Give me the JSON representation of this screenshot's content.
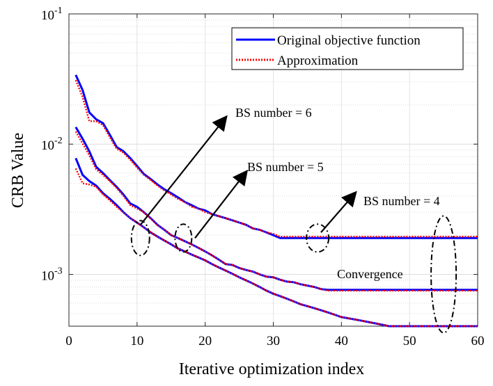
{
  "chart_data": {
    "type": "line",
    "xlabel": "Iterative optimization index",
    "ylabel": "CRB Value",
    "xlim": [
      0,
      60
    ],
    "ylim": [
      0.0004,
      0.1
    ],
    "yscale": "log",
    "grid": true,
    "xticks": [
      "0",
      "10",
      "20",
      "30",
      "40",
      "50",
      "60"
    ],
    "yticks": [
      {
        "base": "10",
        "exp": "-3",
        "value": 0.001
      },
      {
        "base": "10",
        "exp": "-2",
        "value": 0.01
      },
      {
        "base": "10",
        "exp": "-1",
        "value": 0.1
      }
    ],
    "legend": {
      "position": "top-right",
      "entries": [
        {
          "label": "Original objective function",
          "color": "#0000ff",
          "style": "solid"
        },
        {
          "label": "Approximation",
          "color": "#ff0000",
          "style": "dotted"
        }
      ]
    },
    "x": [
      1,
      2,
      3,
      4,
      5,
      6,
      7,
      8,
      9,
      10,
      11,
      12,
      13,
      14,
      15,
      16,
      17,
      18,
      19,
      20,
      21,
      22,
      23,
      24,
      25,
      26,
      27,
      28,
      29,
      30,
      31,
      32,
      33,
      34,
      35,
      36,
      37,
      38,
      39,
      40,
      41,
      42,
      43,
      44,
      45,
      46,
      47,
      48,
      49,
      50,
      51,
      52,
      53,
      54,
      55,
      56,
      57,
      58,
      59,
      60
    ],
    "series": [
      {
        "group": "BS number = 6",
        "original": [
          0.034,
          0.026,
          0.0175,
          0.0155,
          0.0145,
          0.0118,
          0.0095,
          0.0088,
          0.0078,
          0.0068,
          0.0059,
          0.0054,
          0.0049,
          0.0045,
          0.0042,
          0.0039,
          0.0036,
          0.0034,
          0.0032,
          0.0031,
          0.0029,
          0.0028,
          0.0027,
          0.0026,
          0.0025,
          0.0024,
          0.00225,
          0.0022,
          0.0021,
          0.002,
          0.0019,
          0.0019,
          0.0019,
          0.0019,
          0.0019,
          0.0019,
          0.0019,
          0.0019,
          0.0019,
          0.0019,
          0.0019,
          0.0019,
          0.0019,
          0.0019,
          0.0019,
          0.0019,
          0.0019,
          0.0019,
          0.0019,
          0.0019,
          0.0019,
          0.0019,
          0.0019,
          0.0019,
          0.0019,
          0.0019,
          0.0019,
          0.0019,
          0.0019,
          0.0019
        ],
        "approximation": [
          0.031,
          0.023,
          0.015,
          0.015,
          0.014,
          0.0113,
          0.0092,
          0.0086,
          0.0076,
          0.0066,
          0.0058,
          0.0053,
          0.0048,
          0.0044,
          0.0041,
          0.0038,
          0.0036,
          0.0033,
          0.0032,
          0.003,
          0.0029,
          0.0028,
          0.0027,
          0.0026,
          0.0025,
          0.0024,
          0.00225,
          0.0022,
          0.0021,
          0.00205,
          0.00195,
          0.00195,
          0.00195,
          0.00195,
          0.00195,
          0.00195,
          0.00195,
          0.00195,
          0.00195,
          0.00195,
          0.00195,
          0.00195,
          0.00195,
          0.00195,
          0.00195,
          0.00195,
          0.00195,
          0.00195,
          0.00195,
          0.00195,
          0.00195,
          0.00195,
          0.00195,
          0.00195,
          0.00195,
          0.00195,
          0.00195,
          0.00195,
          0.00195,
          0.00195
        ]
      },
      {
        "group": "BS number = 5",
        "original": [
          0.0135,
          0.011,
          0.0088,
          0.0067,
          0.006,
          0.0053,
          0.0047,
          0.0041,
          0.0035,
          0.0033,
          0.003,
          0.0027,
          0.0024,
          0.0022,
          0.002,
          0.0019,
          0.0018,
          0.0017,
          0.0016,
          0.0015,
          0.0014,
          0.0013,
          0.0012,
          0.00118,
          0.00112,
          0.00108,
          0.00105,
          0.001,
          0.00096,
          0.00095,
          0.00091,
          0.00088,
          0.00087,
          0.00084,
          0.00082,
          0.0008,
          0.00077,
          0.00076,
          0.00076,
          0.00076,
          0.00076,
          0.00076,
          0.00076,
          0.00076,
          0.00076,
          0.00076,
          0.00076,
          0.00076,
          0.00076,
          0.00076,
          0.00076,
          0.00076,
          0.00076,
          0.00076,
          0.00076,
          0.00076,
          0.00076,
          0.00076,
          0.00076,
          0.00076
        ],
        "approximation": [
          0.0125,
          0.0101,
          0.0082,
          0.0064,
          0.0058,
          0.0052,
          0.0046,
          0.004,
          0.0034,
          0.0032,
          0.003,
          0.0027,
          0.0024,
          0.0022,
          0.002,
          0.0019,
          0.0018,
          0.0017,
          0.0016,
          0.0015,
          0.0014,
          0.0013,
          0.0012,
          0.00118,
          0.00112,
          0.00108,
          0.00105,
          0.001,
          0.00096,
          0.00095,
          0.00091,
          0.00088,
          0.00087,
          0.00084,
          0.00082,
          0.0008,
          0.00077,
          0.00075,
          0.00075,
          0.00075,
          0.00075,
          0.00075,
          0.00075,
          0.00075,
          0.00075,
          0.00075,
          0.00075,
          0.00075,
          0.00075,
          0.00075,
          0.00075,
          0.00075,
          0.00075,
          0.00075,
          0.00075,
          0.00075,
          0.00075,
          0.00075,
          0.00075,
          0.00075
        ]
      },
      {
        "group": "BS number = 4",
        "original": [
          0.0078,
          0.0058,
          0.0052,
          0.0048,
          0.0042,
          0.0038,
          0.0034,
          0.003,
          0.0027,
          0.0025,
          0.0023,
          0.0021,
          0.00195,
          0.00182,
          0.0017,
          0.00158,
          0.0015,
          0.00142,
          0.00135,
          0.00128,
          0.0012,
          0.00113,
          0.00107,
          0.00101,
          0.00095,
          0.0009,
          0.00085,
          0.0008,
          0.00075,
          0.00071,
          0.00068,
          0.00065,
          0.00062,
          0.00059,
          0.00057,
          0.00055,
          0.00053,
          0.00051,
          0.00049,
          0.00047,
          0.00046,
          0.00045,
          0.00044,
          0.00043,
          0.00042,
          0.00041,
          0.0004,
          0.0004,
          0.0004,
          0.0004,
          0.0004,
          0.0004,
          0.0004,
          0.0004,
          0.0004,
          0.0004,
          0.0004,
          0.0004,
          0.0004,
          0.0004
        ],
        "approximation": [
          0.0065,
          0.005,
          0.0049,
          0.0047,
          0.0041,
          0.0037,
          0.0033,
          0.003,
          0.0027,
          0.0025,
          0.0023,
          0.0021,
          0.00195,
          0.00182,
          0.0017,
          0.00158,
          0.0015,
          0.00142,
          0.00135,
          0.00128,
          0.0012,
          0.00113,
          0.00107,
          0.00101,
          0.00095,
          0.0009,
          0.00085,
          0.0008,
          0.00075,
          0.00071,
          0.00068,
          0.00065,
          0.00062,
          0.00059,
          0.00057,
          0.00055,
          0.00053,
          0.00051,
          0.00049,
          0.00047,
          0.00046,
          0.00045,
          0.00044,
          0.00043,
          0.00042,
          0.00041,
          0.0004,
          0.0004,
          0.0004,
          0.0004,
          0.0004,
          0.0004,
          0.0004,
          0.0004,
          0.0004,
          0.0004,
          0.0004,
          0.0004,
          0.0004,
          0.0004
        ]
      }
    ],
    "annotations": [
      {
        "text": "BS number = 6",
        "arrow_from": {
          "x": 10.5,
          "y": 0.0024
        },
        "arrow_to": {
          "x": 23,
          "y": 0.016
        }
      },
      {
        "text": "BS number = 5",
        "arrow_from": {
          "x": 18.5,
          "y": 0.0019
        },
        "arrow_to": {
          "x": 26,
          "y": 0.0061
        }
      },
      {
        "text": "BS number = 4",
        "arrow_from": {
          "x": 37,
          "y": 0.0021
        },
        "arrow_to": {
          "x": 42,
          "y": 0.0042
        }
      },
      {
        "text": "Convergence"
      }
    ],
    "markers": [
      {
        "kind": "ellipse",
        "x": 10.5,
        "y": 0.0019,
        "style": "dash-dot"
      },
      {
        "kind": "ellipse",
        "x": 16.8,
        "y": 0.0019,
        "style": "dash-dot"
      },
      {
        "kind": "ellipse",
        "x": 36.5,
        "y": 0.0019,
        "style": "dash-dot"
      },
      {
        "kind": "ellipse",
        "x": 55,
        "y": 0.001,
        "style": "dash-dot"
      }
    ]
  }
}
